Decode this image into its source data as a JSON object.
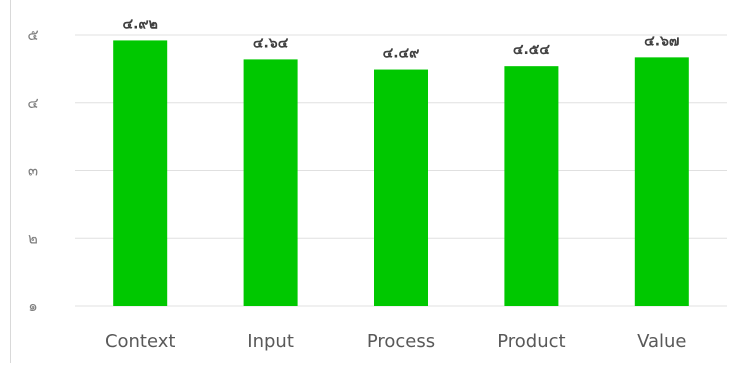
{
  "chart_data": {
    "type": "bar",
    "categories": [
      "Context",
      "Input",
      "Process",
      "Product",
      "Value"
    ],
    "values": [
      4.92,
      4.64,
      4.49,
      4.54,
      4.67
    ],
    "value_labels": [
      "๔.๙๒",
      "๔.๖๔",
      "๔.๔๙",
      "๔.๕๔",
      "๔.๖๗"
    ],
    "ylim": [
      1,
      5
    ],
    "y_ticks": [
      1,
      2,
      3,
      4,
      5
    ],
    "y_tick_labels": [
      "๑",
      "๒",
      "๓",
      "๔",
      "๕"
    ],
    "grid": true,
    "bar_color": "#00c800",
    "grid_color": "#e0e0e0",
    "title": "",
    "xlabel": "",
    "ylabel": ""
  }
}
